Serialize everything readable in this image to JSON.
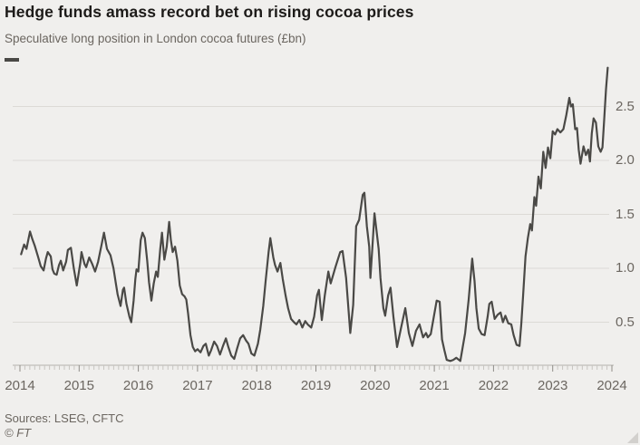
{
  "header": {
    "title": "Hedge funds amass record bet on rising cocoa prices",
    "subtitle": "Speculative long position in London cocoa futures (£bn)"
  },
  "footer": {
    "sources": "Sources: LSEG, CFTC",
    "copyright": "© FT"
  },
  "colors": {
    "background": "#f0efed",
    "line": "#4a4946",
    "grid": "#dcdad6",
    "axis": "#b3b1ad",
    "tick_minor": "#c7c5c1",
    "tick_year": "#8f8c88",
    "text_muted": "#6b6660",
    "title_text": "#1d1b19"
  },
  "chart_data": {
    "type": "line",
    "title": "Hedge funds amass record bet on rising cocoa prices",
    "subtitle": "Speculative long position in London cocoa futures (£bn)",
    "xlabel": "",
    "ylabel": "£bn",
    "xlim": [
      2013.9,
      2024.05
    ],
    "ylim": [
      0.1,
      2.9
    ],
    "grid": "horizontal",
    "y_axis_side": "right",
    "legend_position": "top-left-key-only",
    "x_ticks": [
      {
        "label": "2014",
        "value": 2014
      },
      {
        "label": "2015",
        "value": 2015
      },
      {
        "label": "2016",
        "value": 2016
      },
      {
        "label": "2017",
        "value": 2017
      },
      {
        "label": "2018",
        "value": 2018
      },
      {
        "label": "2019",
        "value": 2019
      },
      {
        "label": "2020",
        "value": 2020
      },
      {
        "label": "2021",
        "value": 2021
      },
      {
        "label": "2022",
        "value": 2022
      },
      {
        "label": "2023",
        "value": 2023
      },
      {
        "label": "2024",
        "value": 2024
      }
    ],
    "y_ticks": [
      {
        "label": "0.5",
        "value": 0.5
      },
      {
        "label": "1.0",
        "value": 1.0
      },
      {
        "label": "1.5",
        "value": 1.5
      },
      {
        "label": "2.0",
        "value": 2.0
      },
      {
        "label": "2.5",
        "value": 2.5
      }
    ],
    "series": [
      {
        "name": "Speculative long position in London cocoa futures (£bn)",
        "color": "#4a4946",
        "points": [
          [
            2014.02,
            1.13
          ],
          [
            2014.07,
            1.22
          ],
          [
            2014.11,
            1.18
          ],
          [
            2014.17,
            1.34
          ],
          [
            2014.21,
            1.27
          ],
          [
            2014.25,
            1.21
          ],
          [
            2014.31,
            1.1
          ],
          [
            2014.35,
            1.02
          ],
          [
            2014.4,
            0.98
          ],
          [
            2014.44,
            1.09
          ],
          [
            2014.47,
            1.15
          ],
          [
            2014.52,
            1.11
          ],
          [
            2014.55,
            0.99
          ],
          [
            2014.58,
            0.95
          ],
          [
            2014.62,
            0.94
          ],
          [
            2014.66,
            1.03
          ],
          [
            2014.69,
            1.07
          ],
          [
            2014.73,
            0.98
          ],
          [
            2014.78,
            1.06
          ],
          [
            2014.81,
            1.17
          ],
          [
            2014.86,
            1.19
          ],
          [
            2014.91,
            1.0
          ],
          [
            2014.96,
            0.84
          ],
          [
            2015.02,
            1.05
          ],
          [
            2015.04,
            1.15
          ],
          [
            2015.09,
            1.04
          ],
          [
            2015.12,
            1.01
          ],
          [
            2015.17,
            1.1
          ],
          [
            2015.22,
            1.04
          ],
          [
            2015.27,
            0.97
          ],
          [
            2015.32,
            1.06
          ],
          [
            2015.38,
            1.22
          ],
          [
            2015.42,
            1.33
          ],
          [
            2015.47,
            1.18
          ],
          [
            2015.53,
            1.12
          ],
          [
            2015.58,
            1.0
          ],
          [
            2015.62,
            0.86
          ],
          [
            2015.65,
            0.76
          ],
          [
            2015.7,
            0.65
          ],
          [
            2015.74,
            0.8
          ],
          [
            2015.76,
            0.82
          ],
          [
            2015.8,
            0.67
          ],
          [
            2015.85,
            0.55
          ],
          [
            2015.88,
            0.5
          ],
          [
            2015.92,
            0.7
          ],
          [
            2015.95,
            0.9
          ],
          [
            2015.97,
            0.99
          ],
          [
            2016.0,
            0.97
          ],
          [
            2016.04,
            1.26
          ],
          [
            2016.07,
            1.33
          ],
          [
            2016.11,
            1.28
          ],
          [
            2016.15,
            1.07
          ],
          [
            2016.18,
            0.87
          ],
          [
            2016.22,
            0.7
          ],
          [
            2016.26,
            0.86
          ],
          [
            2016.3,
            0.97
          ],
          [
            2016.33,
            0.92
          ],
          [
            2016.37,
            1.18
          ],
          [
            2016.4,
            1.33
          ],
          [
            2016.44,
            1.08
          ],
          [
            2016.48,
            1.2
          ],
          [
            2016.52,
            1.43
          ],
          [
            2016.55,
            1.26
          ],
          [
            2016.58,
            1.15
          ],
          [
            2016.62,
            1.2
          ],
          [
            2016.66,
            1.07
          ],
          [
            2016.7,
            0.84
          ],
          [
            2016.74,
            0.76
          ],
          [
            2016.78,
            0.74
          ],
          [
            2016.81,
            0.71
          ],
          [
            2016.84,
            0.58
          ],
          [
            2016.88,
            0.38
          ],
          [
            2016.92,
            0.27
          ],
          [
            2016.96,
            0.23
          ],
          [
            2017.0,
            0.25
          ],
          [
            2017.05,
            0.22
          ],
          [
            2017.1,
            0.28
          ],
          [
            2017.14,
            0.3
          ],
          [
            2017.19,
            0.19
          ],
          [
            2017.23,
            0.24
          ],
          [
            2017.28,
            0.32
          ],
          [
            2017.33,
            0.28
          ],
          [
            2017.38,
            0.2
          ],
          [
            2017.43,
            0.28
          ],
          [
            2017.48,
            0.35
          ],
          [
            2017.52,
            0.27
          ],
          [
            2017.57,
            0.19
          ],
          [
            2017.62,
            0.16
          ],
          [
            2017.67,
            0.26
          ],
          [
            2017.72,
            0.35
          ],
          [
            2017.77,
            0.38
          ],
          [
            2017.82,
            0.33
          ],
          [
            2017.86,
            0.3
          ],
          [
            2017.91,
            0.21
          ],
          [
            2017.96,
            0.19
          ],
          [
            2018.02,
            0.3
          ],
          [
            2018.06,
            0.43
          ],
          [
            2018.11,
            0.65
          ],
          [
            2018.15,
            0.88
          ],
          [
            2018.2,
            1.15
          ],
          [
            2018.23,
            1.28
          ],
          [
            2018.28,
            1.1
          ],
          [
            2018.31,
            1.03
          ],
          [
            2018.35,
            0.97
          ],
          [
            2018.4,
            1.05
          ],
          [
            2018.44,
            0.9
          ],
          [
            2018.49,
            0.74
          ],
          [
            2018.53,
            0.63
          ],
          [
            2018.58,
            0.53
          ],
          [
            2018.63,
            0.5
          ],
          [
            2018.67,
            0.48
          ],
          [
            2018.72,
            0.52
          ],
          [
            2018.77,
            0.45
          ],
          [
            2018.82,
            0.51
          ],
          [
            2018.86,
            0.48
          ],
          [
            2018.92,
            0.45
          ],
          [
            2018.97,
            0.55
          ],
          [
            2019.02,
            0.75
          ],
          [
            2019.05,
            0.8
          ],
          [
            2019.1,
            0.52
          ],
          [
            2019.15,
            0.75
          ],
          [
            2019.21,
            0.97
          ],
          [
            2019.25,
            0.86
          ],
          [
            2019.33,
            1.01
          ],
          [
            2019.41,
            1.15
          ],
          [
            2019.45,
            1.16
          ],
          [
            2019.51,
            0.91
          ],
          [
            2019.58,
            0.4
          ],
          [
            2019.63,
            0.66
          ],
          [
            2019.68,
            1.39
          ],
          [
            2019.73,
            1.45
          ],
          [
            2019.79,
            1.68
          ],
          [
            2019.82,
            1.7
          ],
          [
            2019.86,
            1.39
          ],
          [
            2019.9,
            1.2
          ],
          [
            2019.92,
            0.91
          ],
          [
            2019.96,
            1.25
          ],
          [
            2019.99,
            1.51
          ],
          [
            2020.06,
            1.18
          ],
          [
            2020.09,
            0.91
          ],
          [
            2020.14,
            0.63
          ],
          [
            2020.17,
            0.56
          ],
          [
            2020.22,
            0.75
          ],
          [
            2020.26,
            0.82
          ],
          [
            2020.31,
            0.55
          ],
          [
            2020.37,
            0.27
          ],
          [
            2020.44,
            0.45
          ],
          [
            2020.51,
            0.63
          ],
          [
            2020.57,
            0.4
          ],
          [
            2020.63,
            0.28
          ],
          [
            2020.69,
            0.42
          ],
          [
            2020.75,
            0.48
          ],
          [
            2020.81,
            0.36
          ],
          [
            2020.86,
            0.4
          ],
          [
            2020.89,
            0.36
          ],
          [
            2020.94,
            0.39
          ],
          [
            2021.04,
            0.7
          ],
          [
            2021.09,
            0.69
          ],
          [
            2021.13,
            0.34
          ],
          [
            2021.17,
            0.24
          ],
          [
            2021.21,
            0.15
          ],
          [
            2021.27,
            0.14
          ],
          [
            2021.32,
            0.15
          ],
          [
            2021.37,
            0.17
          ],
          [
            2021.44,
            0.14
          ],
          [
            2021.52,
            0.4
          ],
          [
            2021.58,
            0.71
          ],
          [
            2021.64,
            1.09
          ],
          [
            2021.68,
            0.88
          ],
          [
            2021.71,
            0.63
          ],
          [
            2021.75,
            0.44
          ],
          [
            2021.8,
            0.39
          ],
          [
            2021.85,
            0.38
          ],
          [
            2021.9,
            0.55
          ],
          [
            2021.93,
            0.67
          ],
          [
            2021.97,
            0.69
          ],
          [
            2022.02,
            0.53
          ],
          [
            2022.07,
            0.57
          ],
          [
            2022.12,
            0.59
          ],
          [
            2022.16,
            0.5
          ],
          [
            2022.2,
            0.56
          ],
          [
            2022.25,
            0.49
          ],
          [
            2022.3,
            0.48
          ],
          [
            2022.34,
            0.38
          ],
          [
            2022.39,
            0.29
          ],
          [
            2022.44,
            0.28
          ],
          [
            2022.47,
            0.49
          ],
          [
            2022.5,
            0.74
          ],
          [
            2022.54,
            1.11
          ],
          [
            2022.58,
            1.28
          ],
          [
            2022.62,
            1.41
          ],
          [
            2022.65,
            1.35
          ],
          [
            2022.69,
            1.66
          ],
          [
            2022.72,
            1.58
          ],
          [
            2022.76,
            1.85
          ],
          [
            2022.8,
            1.74
          ],
          [
            2022.84,
            2.08
          ],
          [
            2022.88,
            1.93
          ],
          [
            2022.92,
            2.12
          ],
          [
            2022.96,
            2.02
          ],
          [
            2023.0,
            2.27
          ],
          [
            2023.04,
            2.24
          ],
          [
            2023.08,
            2.29
          ],
          [
            2023.13,
            2.26
          ],
          [
            2023.18,
            2.29
          ],
          [
            2023.23,
            2.42
          ],
          [
            2023.28,
            2.58
          ],
          [
            2023.31,
            2.5
          ],
          [
            2023.34,
            2.52
          ],
          [
            2023.38,
            2.29
          ],
          [
            2023.41,
            2.3
          ],
          [
            2023.44,
            2.1
          ],
          [
            2023.47,
            1.97
          ],
          [
            2023.52,
            2.13
          ],
          [
            2023.56,
            2.05
          ],
          [
            2023.6,
            2.1
          ],
          [
            2023.63,
            1.99
          ],
          [
            2023.66,
            2.25
          ],
          [
            2023.69,
            2.39
          ],
          [
            2023.73,
            2.35
          ],
          [
            2023.77,
            2.13
          ],
          [
            2023.81,
            2.08
          ],
          [
            2023.84,
            2.12
          ],
          [
            2023.87,
            2.38
          ],
          [
            2023.9,
            2.66
          ],
          [
            2023.93,
            2.86
          ]
        ]
      }
    ]
  }
}
